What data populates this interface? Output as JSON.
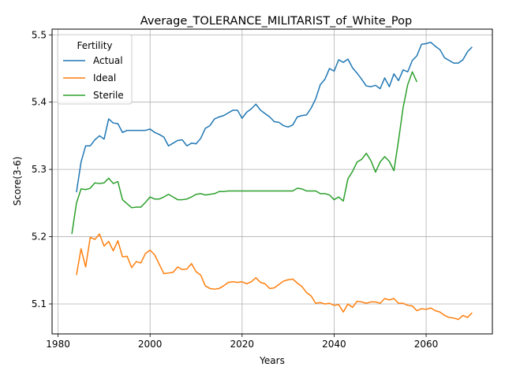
{
  "chart_data": {
    "type": "line",
    "title": "Average_TOLERANCE_MILITARIST_of_White_Pop",
    "xlabel": "Years",
    "ylabel": "Score(3-6)",
    "xlim": [
      1978.7,
      2074.4
    ],
    "ylim": [
      5.0555,
      5.5085
    ],
    "x_ticks": [
      1980,
      2000,
      2020,
      2040,
      2060
    ],
    "y_ticks": [
      5.1,
      5.2,
      5.3,
      5.4,
      5.5
    ],
    "grid": true,
    "legend": {
      "title": "Fertility",
      "placement": "top-left"
    },
    "colors": {
      "Actual": "#1f77b4",
      "Ideal": "#ff7f0e",
      "Sterile": "#2ca02c"
    },
    "series": [
      {
        "name": "Actual",
        "x": [
          1984,
          1985,
          1986,
          1987,
          1988,
          1989,
          1990,
          1991,
          1992,
          1993,
          1994,
          1995,
          1996,
          1997,
          1998,
          1999,
          2000,
          2001,
          2002,
          2003,
          2004,
          2005,
          2006,
          2007,
          2008,
          2009,
          2010,
          2011,
          2012,
          2013,
          2014,
          2015,
          2016,
          2017,
          2018,
          2019,
          2020,
          2021,
          2022,
          2023,
          2024,
          2025,
          2026,
          2027,
          2028,
          2029,
          2030,
          2031,
          2032,
          2033,
          2034,
          2035,
          2036,
          2037,
          2038,
          2039,
          2040,
          2041,
          2042,
          2043,
          2044,
          2045,
          2046,
          2047,
          2048,
          2049,
          2050,
          2051,
          2052,
          2053,
          2054,
          2055,
          2056,
          2057,
          2058,
          2059,
          2060,
          2061,
          2062,
          2063,
          2064,
          2065,
          2066,
          2067,
          2068,
          2069,
          2070
        ],
        "values": [
          5.266,
          5.311,
          5.335,
          5.335,
          5.344,
          5.35,
          5.345,
          5.375,
          5.369,
          5.368,
          5.355,
          5.358,
          5.358,
          5.358,
          5.358,
          5.358,
          5.36,
          5.355,
          5.352,
          5.348,
          5.335,
          5.339,
          5.343,
          5.344,
          5.335,
          5.339,
          5.338,
          5.346,
          5.361,
          5.365,
          5.375,
          5.378,
          5.38,
          5.384,
          5.388,
          5.388,
          5.376,
          5.385,
          5.39,
          5.397,
          5.388,
          5.383,
          5.378,
          5.371,
          5.37,
          5.365,
          5.363,
          5.366,
          5.378,
          5.38,
          5.381,
          5.391,
          5.405,
          5.426,
          5.434,
          5.45,
          5.446,
          5.463,
          5.459,
          5.464,
          5.451,
          5.443,
          5.434,
          5.424,
          5.423,
          5.425,
          5.42,
          5.436,
          5.423,
          5.442,
          5.432,
          5.448,
          5.445,
          5.462,
          5.469,
          5.486,
          5.487,
          5.489,
          5.483,
          5.478,
          5.466,
          5.462,
          5.458,
          5.458,
          5.463,
          5.475,
          5.482
        ]
      },
      {
        "name": "Ideal",
        "x": [
          1984,
          1985,
          1986,
          1987,
          1988,
          1989,
          1990,
          1991,
          1992,
          1993,
          1994,
          1995,
          1996,
          1997,
          1998,
          1999,
          2000,
          2001,
          2002,
          2003,
          2004,
          2005,
          2006,
          2007,
          2008,
          2009,
          2010,
          2011,
          2012,
          2013,
          2014,
          2015,
          2016,
          2017,
          2018,
          2019,
          2020,
          2021,
          2022,
          2023,
          2024,
          2025,
          2026,
          2027,
          2028,
          2029,
          2030,
          2031,
          2032,
          2033,
          2034,
          2035,
          2036,
          2037,
          2038,
          2039,
          2040,
          2041,
          2042,
          2043,
          2044,
          2045,
          2046,
          2047,
          2048,
          2049,
          2050,
          2051,
          2052,
          2053,
          2054,
          2055,
          2056,
          2057,
          2058,
          2059,
          2060,
          2061,
          2062,
          2063,
          2064,
          2065,
          2066,
          2067,
          2068,
          2069,
          2070
        ],
        "values": [
          5.143,
          5.182,
          5.155,
          5.199,
          5.196,
          5.204,
          5.186,
          5.193,
          5.179,
          5.194,
          5.17,
          5.171,
          5.154,
          5.163,
          5.161,
          5.175,
          5.18,
          5.173,
          5.159,
          5.145,
          5.146,
          5.147,
          5.155,
          5.151,
          5.152,
          5.16,
          5.148,
          5.143,
          5.127,
          5.123,
          5.122,
          5.123,
          5.127,
          5.132,
          5.133,
          5.132,
          5.133,
          5.13,
          5.133,
          5.139,
          5.132,
          5.13,
          5.123,
          5.124,
          5.129,
          5.134,
          5.136,
          5.137,
          5.131,
          5.126,
          5.117,
          5.112,
          5.101,
          5.102,
          5.1,
          5.101,
          5.098,
          5.099,
          5.088,
          5.1,
          5.095,
          5.104,
          5.103,
          5.101,
          5.103,
          5.103,
          5.101,
          5.108,
          5.106,
          5.108,
          5.101,
          5.101,
          5.098,
          5.097,
          5.09,
          5.093,
          5.092,
          5.094,
          5.09,
          5.088,
          5.083,
          5.08,
          5.079,
          5.077,
          5.083,
          5.08,
          5.087
        ]
      },
      {
        "name": "Sterile",
        "x": [
          1983,
          1984,
          1985,
          1986,
          1987,
          1988,
          1989,
          1990,
          1991,
          1992,
          1993,
          1994,
          1995,
          1996,
          1997,
          1998,
          1999,
          2000,
          2001,
          2002,
          2003,
          2004,
          2005,
          2006,
          2007,
          2008,
          2009,
          2010,
          2011,
          2012,
          2013,
          2014,
          2015,
          2016,
          2017,
          2018,
          2019,
          2020,
          2021,
          2022,
          2023,
          2024,
          2025,
          2026,
          2027,
          2028,
          2029,
          2030,
          2031,
          2032,
          2033,
          2034,
          2035,
          2036,
          2037,
          2038,
          2039,
          2040,
          2041,
          2042,
          2043,
          2044,
          2045,
          2046,
          2047,
          2048,
          2049,
          2050,
          2051,
          2052,
          2053,
          2054,
          2055,
          2056,
          2057,
          2058
        ],
        "values": [
          5.204,
          5.25,
          5.271,
          5.27,
          5.272,
          5.28,
          5.279,
          5.28,
          5.287,
          5.279,
          5.282,
          5.255,
          5.249,
          5.243,
          5.244,
          5.244,
          5.251,
          5.259,
          5.256,
          5.256,
          5.259,
          5.263,
          5.259,
          5.255,
          5.255,
          5.256,
          5.259,
          5.263,
          5.264,
          5.262,
          5.263,
          5.264,
          5.267,
          5.267,
          5.268,
          5.268,
          5.268,
          5.268,
          5.268,
          5.268,
          5.268,
          5.268,
          5.268,
          5.268,
          5.268,
          5.268,
          5.268,
          5.268,
          5.268,
          5.272,
          5.271,
          5.268,
          5.268,
          5.268,
          5.264,
          5.264,
          5.262,
          5.255,
          5.259,
          5.253,
          5.286,
          5.297,
          5.311,
          5.315,
          5.324,
          5.313,
          5.296,
          5.311,
          5.319,
          5.312,
          5.298,
          5.343,
          5.392,
          5.426,
          5.445,
          5.43
        ]
      }
    ]
  }
}
